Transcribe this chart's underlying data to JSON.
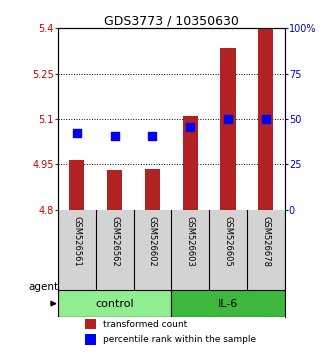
{
  "title": "GDS3773 / 10350630",
  "samples": [
    "GSM526561",
    "GSM526562",
    "GSM526602",
    "GSM526603",
    "GSM526605",
    "GSM526678"
  ],
  "red_values": [
    4.965,
    4.93,
    4.935,
    5.11,
    5.335,
    5.4
  ],
  "blue_values": [
    5.055,
    5.045,
    5.045,
    5.075,
    5.1,
    5.1
  ],
  "ylim_left": [
    4.8,
    5.4
  ],
  "ylim_right": [
    0,
    100
  ],
  "yticks_left": [
    4.8,
    4.95,
    5.1,
    5.25,
    5.4
  ],
  "yticks_right": [
    0,
    25,
    50,
    75,
    100
  ],
  "ytick_labels_left": [
    "4.8",
    "4.95",
    "5.1",
    "5.25",
    "5.4"
  ],
  "ytick_labels_right": [
    "0",
    "25",
    "50",
    "75",
    "100%"
  ],
  "bar_color": "#B22222",
  "dot_color": "#0000FF",
  "bar_width": 0.4,
  "dot_size": 35,
  "background_plot": "#FFFFFF",
  "background_samples": "#D3D3D3",
  "control_color": "#90EE90",
  "il6_color": "#3CB93C",
  "agent_label": "agent",
  "legend_items": [
    "transformed count",
    "percentile rank within the sample"
  ],
  "title_fontsize": 9,
  "tick_fontsize": 7,
  "sample_fontsize": 6,
  "group_fontsize": 8
}
